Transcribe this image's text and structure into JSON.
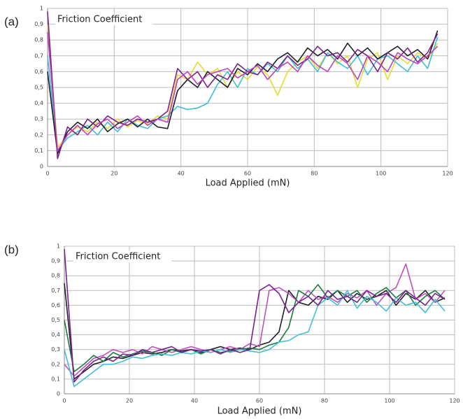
{
  "chart_data": [
    {
      "type": "line",
      "panel_label": "(a)",
      "title": "Friction Coefficient",
      "x_label": "Load Applied (mN)",
      "x": [
        0,
        3,
        6,
        9,
        12,
        15,
        18,
        21,
        24,
        27,
        30,
        33,
        36,
        39,
        42,
        45,
        48,
        51,
        54,
        57,
        60,
        63,
        66,
        69,
        72,
        75,
        78,
        81,
        84,
        87,
        90,
        93,
        96,
        99,
        102,
        105,
        108,
        111,
        114,
        117
      ],
      "xlim": [
        0,
        120
      ],
      "ylim": [
        0,
        1
      ],
      "grid": true,
      "xticks": [
        0,
        20,
        40,
        60,
        80,
        100,
        120
      ],
      "yticks": [
        0,
        {
          "value": 0.1,
          "label": "0,1"
        },
        {
          "value": 0.2,
          "label": "0,2"
        },
        {
          "value": 0.3,
          "label": "0,3"
        },
        {
          "value": 0.4,
          "label": "0,4"
        },
        {
          "value": 0.5,
          "label": "0,5"
        },
        {
          "value": 0.6,
          "label": "0,6"
        },
        {
          "value": 0.7,
          "label": "0,7"
        },
        {
          "value": 0.8,
          "label": "0,8"
        },
        {
          "value": 0.9,
          "label": "0,9"
        },
        1
      ],
      "series": [
        {
          "color": "#e6dc2e",
          "values": [
            0.9,
            0.12,
            0.2,
            0.25,
            0.22,
            0.28,
            0.24,
            0.3,
            0.25,
            0.29,
            0.27,
            0.32,
            0.3,
            0.58,
            0.55,
            0.66,
            0.58,
            0.62,
            0.5,
            0.6,
            0.55,
            0.63,
            0.58,
            0.45,
            0.6,
            0.66,
            0.7,
            0.62,
            0.72,
            0.65,
            0.7,
            0.5,
            0.68,
            0.72,
            0.55,
            0.7,
            0.65,
            0.72,
            0.68,
            0.78
          ]
        },
        {
          "color": "#3cc0d8",
          "values": [
            0.7,
            0.1,
            0.18,
            0.22,
            0.26,
            0.2,
            0.28,
            0.22,
            0.3,
            0.26,
            0.24,
            0.3,
            0.32,
            0.38,
            0.36,
            0.37,
            0.4,
            0.52,
            0.6,
            0.5,
            0.62,
            0.58,
            0.65,
            0.6,
            0.7,
            0.62,
            0.68,
            0.6,
            0.72,
            0.66,
            0.62,
            0.7,
            0.58,
            0.68,
            0.7,
            0.65,
            0.6,
            0.7,
            0.62,
            0.82
          ]
        },
        {
          "color": "#1e1e28",
          "values": [
            0.6,
            0.08,
            0.22,
            0.28,
            0.24,
            0.3,
            0.22,
            0.27,
            0.3,
            0.25,
            0.3,
            0.25,
            0.24,
            0.48,
            0.55,
            0.5,
            0.6,
            0.55,
            0.5,
            0.62,
            0.58,
            0.65,
            0.6,
            0.68,
            0.72,
            0.66,
            0.75,
            0.7,
            0.74,
            0.68,
            0.78,
            0.7,
            0.75,
            0.68,
            0.72,
            0.76,
            0.7,
            0.74,
            0.68,
            0.86
          ]
        },
        {
          "color": "#7a2088",
          "values": [
            0.98,
            0.05,
            0.25,
            0.2,
            0.3,
            0.25,
            0.32,
            0.28,
            0.26,
            0.3,
            0.28,
            0.3,
            0.35,
            0.62,
            0.55,
            0.6,
            0.5,
            0.58,
            0.55,
            0.65,
            0.6,
            0.58,
            0.66,
            0.62,
            0.7,
            0.64,
            0.68,
            0.76,
            0.7,
            0.72,
            0.66,
            0.74,
            0.7,
            0.6,
            0.72,
            0.68,
            0.75,
            0.66,
            0.72,
            0.84
          ]
        },
        {
          "color": "#c040c0",
          "values": [
            0.85,
            0.1,
            0.2,
            0.26,
            0.2,
            0.27,
            0.3,
            0.24,
            0.28,
            0.32,
            0.26,
            0.3,
            0.28,
            0.55,
            0.6,
            0.52,
            0.58,
            0.6,
            0.62,
            0.56,
            0.6,
            0.64,
            0.55,
            0.62,
            0.66,
            0.6,
            0.7,
            0.64,
            0.6,
            0.7,
            0.65,
            0.55,
            0.7,
            0.66,
            0.6,
            0.72,
            0.68,
            0.65,
            0.7,
            0.76
          ]
        }
      ]
    },
    {
      "type": "line",
      "panel_label": "(b)",
      "title": "Friction Coefficient",
      "x_label": "Load Applied (mN)",
      "x": [
        0,
        3,
        6,
        9,
        12,
        15,
        18,
        21,
        24,
        27,
        30,
        33,
        36,
        39,
        42,
        45,
        48,
        51,
        54,
        57,
        60,
        63,
        66,
        69,
        72,
        75,
        78,
        81,
        84,
        87,
        90,
        93,
        96,
        99,
        102,
        105,
        108,
        111,
        114,
        117
      ],
      "xlim": [
        0,
        120
      ],
      "ylim": [
        0,
        1
      ],
      "grid": true,
      "xticks": [
        0,
        20,
        40,
        60,
        80,
        100,
        120
      ],
      "yticks": [
        0,
        {
          "value": 0.1,
          "label": "0,1"
        },
        {
          "value": 0.2,
          "label": "0,2"
        },
        {
          "value": 0.3,
          "label": "0,3"
        },
        {
          "value": 0.4,
          "label": "0,4"
        },
        {
          "value": 0.5,
          "label": "0,5"
        },
        {
          "value": 0.6,
          "label": "0,6"
        },
        {
          "value": 0.7,
          "label": "0,7"
        },
        {
          "value": 0.8,
          "label": "0,8"
        },
        {
          "value": 0.9,
          "label": "0,9"
        },
        1
      ],
      "series": [
        {
          "color": "#1e1e28",
          "values": [
            0.75,
            0.1,
            0.15,
            0.2,
            0.22,
            0.25,
            0.24,
            0.26,
            0.28,
            0.27,
            0.28,
            0.3,
            0.29,
            0.3,
            0.28,
            0.3,
            0.32,
            0.3,
            0.31,
            0.3,
            0.33,
            0.35,
            0.42,
            0.7,
            0.62,
            0.6,
            0.66,
            0.64,
            0.7,
            0.62,
            0.68,
            0.64,
            0.66,
            0.7,
            0.6,
            0.68,
            0.64,
            0.7,
            0.62,
            0.65
          ]
        },
        {
          "color": "#c050c0",
          "values": [
            0.2,
            0.12,
            0.18,
            0.24,
            0.26,
            0.3,
            0.28,
            0.3,
            0.27,
            0.32,
            0.3,
            0.28,
            0.3,
            0.32,
            0.3,
            0.28,
            0.3,
            0.32,
            0.3,
            0.34,
            0.32,
            0.7,
            0.72,
            0.68,
            0.62,
            0.7,
            0.64,
            0.66,
            0.62,
            0.68,
            0.65,
            0.7,
            0.6,
            0.68,
            0.72,
            0.88,
            0.64,
            0.68,
            0.62,
            0.7
          ]
        },
        {
          "color": "#1a7a40",
          "values": [
            0.5,
            0.15,
            0.2,
            0.26,
            0.22,
            0.28,
            0.25,
            0.27,
            0.29,
            0.28,
            0.26,
            0.3,
            0.28,
            0.3,
            0.27,
            0.3,
            0.28,
            0.29,
            0.3,
            0.31,
            0.3,
            0.33,
            0.35,
            0.45,
            0.7,
            0.66,
            0.74,
            0.65,
            0.7,
            0.66,
            0.7,
            0.62,
            0.68,
            0.72,
            0.65,
            0.7,
            0.6,
            0.66,
            0.7,
            0.64
          ]
        },
        {
          "color": "#40c0d8",
          "values": [
            0.3,
            0.05,
            0.1,
            0.15,
            0.2,
            0.2,
            0.22,
            0.25,
            0.24,
            0.26,
            0.27,
            0.26,
            0.28,
            0.27,
            0.29,
            0.28,
            0.3,
            0.28,
            0.3,
            0.29,
            0.28,
            0.3,
            0.35,
            0.36,
            0.4,
            0.42,
            0.6,
            0.65,
            0.6,
            0.7,
            0.58,
            0.66,
            0.62,
            0.56,
            0.65,
            0.6,
            0.62,
            0.55,
            0.64,
            0.56
          ]
        },
        {
          "color": "#7a2090",
          "values": [
            0.98,
            0.08,
            0.16,
            0.22,
            0.25,
            0.22,
            0.27,
            0.26,
            0.3,
            0.28,
            0.3,
            0.32,
            0.28,
            0.3,
            0.29,
            0.3,
            0.27,
            0.3,
            0.28,
            0.3,
            0.7,
            0.74,
            0.68,
            0.55,
            0.62,
            0.66,
            0.6,
            0.7,
            0.64,
            0.66,
            0.62,
            0.7,
            0.66,
            0.68,
            0.62,
            0.7,
            0.65,
            0.6,
            0.68,
            0.64
          ]
        }
      ]
    }
  ]
}
